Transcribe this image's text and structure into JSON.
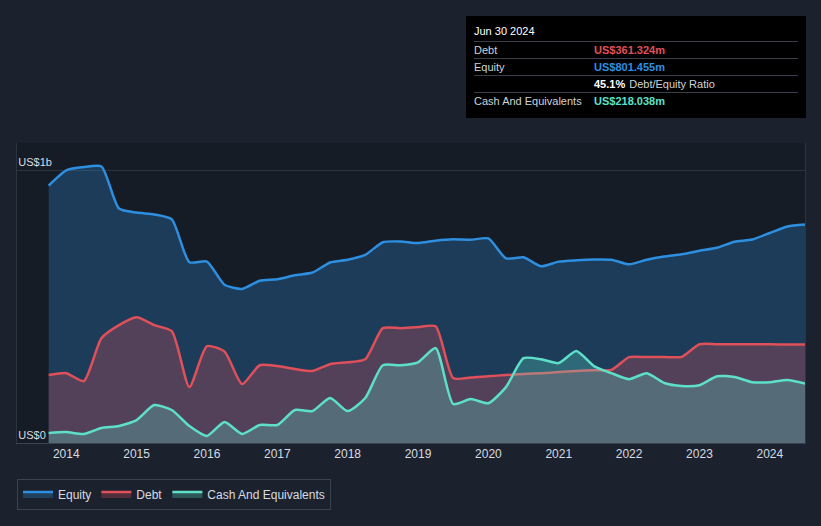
{
  "chart_data": {
    "type": "area",
    "x": [
      2013.75,
      2014,
      2014.25,
      2014.5,
      2014.75,
      2015,
      2015.25,
      2015.5,
      2015.75,
      2016,
      2016.25,
      2016.5,
      2016.75,
      2017,
      2017.25,
      2017.5,
      2017.75,
      2018,
      2018.25,
      2018.5,
      2018.75,
      2019,
      2019.25,
      2019.5,
      2019.75,
      2020,
      2020.25,
      2020.5,
      2020.75,
      2021,
      2021.25,
      2021.5,
      2021.75,
      2022,
      2022.25,
      2022.5,
      2022.75,
      2023,
      2023.25,
      2023.5,
      2023.75,
      2024,
      2024.25,
      2024.5
    ],
    "series": [
      {
        "name": "Equity",
        "color": "#2e8fe0",
        "values": [
          944,
          1000,
          1012,
          1014,
          860,
          845,
          838,
          820,
          663,
          665,
          580,
          565,
          595,
          600,
          615,
          625,
          662,
          672,
          690,
          736,
          739,
          733,
          742,
          747,
          745,
          750,
          677,
          681,
          648,
          665,
          670,
          673,
          672,
          655,
          672,
          684,
          692,
          705,
          716,
          738,
          746,
          770,
          794,
          801.455
        ]
      },
      {
        "name": "Debt",
        "color": "#e0505a",
        "values": [
          249,
          256,
          227,
          384,
          432,
          461,
          432,
          410,
          205,
          355,
          335,
          216,
          285,
          282,
          271,
          264,
          289,
          296,
          307,
          421,
          421,
          425,
          428,
          238,
          240,
          245,
          249,
          253,
          256,
          260,
          264,
          267,
          268,
          315,
          315,
          315,
          316,
          362,
          362,
          362,
          362,
          362,
          361,
          361.324
        ]
      },
      {
        "name": "Cash And Equivalents",
        "color": "#5ee0c8",
        "values": [
          37,
          40,
          33,
          55,
          62,
          84,
          139,
          121,
          62,
          26,
          77,
          33,
          66,
          66,
          121,
          117,
          165,
          117,
          165,
          285,
          285,
          296,
          348,
          143,
          161,
          146,
          205,
          311,
          307,
          293,
          337,
          282,
          256,
          234,
          256,
          220,
          209,
          212,
          245,
          242,
          223,
          223,
          231,
          218.038
        ]
      }
    ],
    "xlim": [
      2013.3,
      2024.5
    ],
    "xticks": [
      2014,
      2015,
      2016,
      2017,
      2018,
      2019,
      2020,
      2021,
      2022,
      2023,
      2024
    ],
    "ylim": [
      0,
      1100
    ],
    "yticks": [
      {
        "value": 0,
        "label": "US$0"
      },
      {
        "value": 1000,
        "label": "US$1b"
      }
    ],
    "grid": true,
    "legend": "bottom left",
    "info_box": {
      "date": "Jun 30 2024",
      "rows": [
        {
          "label": "Debt",
          "value": "US$361.324m",
          "color": "#e0505a"
        },
        {
          "label": "Equity",
          "value": "US$801.455m",
          "color": "#2e8fe0"
        },
        {
          "label": "Debt/Equity Ratio",
          "value": "45.1%",
          "color": "#ffffff"
        },
        {
          "label": "Cash And Equivalents",
          "value": "US$218.038m",
          "color": "#5ee0c8"
        }
      ]
    }
  }
}
